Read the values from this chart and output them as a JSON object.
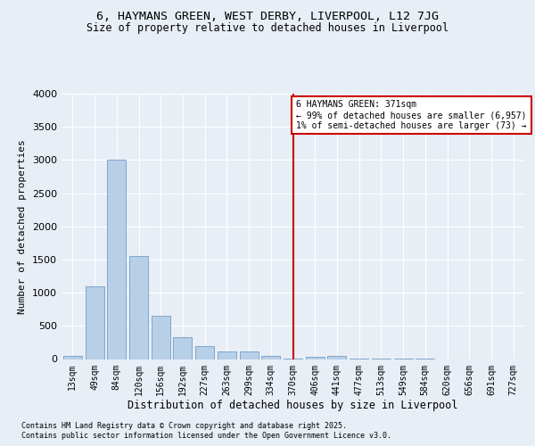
{
  "title1": "6, HAYMANS GREEN, WEST DERBY, LIVERPOOL, L12 7JG",
  "title2": "Size of property relative to detached houses in Liverpool",
  "xlabel": "Distribution of detached houses by size in Liverpool",
  "ylabel": "Number of detached properties",
  "bin_labels": [
    "13sqm",
    "49sqm",
    "84sqm",
    "120sqm",
    "156sqm",
    "192sqm",
    "227sqm",
    "263sqm",
    "299sqm",
    "334sqm",
    "370sqm",
    "406sqm",
    "441sqm",
    "477sqm",
    "513sqm",
    "549sqm",
    "584sqm",
    "620sqm",
    "656sqm",
    "691sqm",
    "727sqm"
  ],
  "bar_values": [
    50,
    1100,
    3000,
    1550,
    650,
    330,
    195,
    115,
    115,
    50,
    10,
    30,
    50,
    5,
    2,
    1,
    1,
    0,
    0,
    0,
    0
  ],
  "bar_color": "#b8cfe8",
  "bar_edge_color": "#6090c0",
  "vline_x_index": 10,
  "vline_color": "#cc0000",
  "annotation_title": "6 HAYMANS GREEN: 371sqm",
  "annotation_line1": "← 99% of detached houses are smaller (6,957)",
  "annotation_line2": "1% of semi-detached houses are larger (73) →",
  "annotation_box_color": "#cc0000",
  "ylim": [
    0,
    4000
  ],
  "yticks": [
    0,
    500,
    1000,
    1500,
    2000,
    2500,
    3000,
    3500,
    4000
  ],
  "footer1": "Contains HM Land Registry data © Crown copyright and database right 2025.",
  "footer2": "Contains public sector information licensed under the Open Government Licence v3.0.",
  "bg_color": "#e8eef5",
  "plot_bg_color": "#e8eef5"
}
